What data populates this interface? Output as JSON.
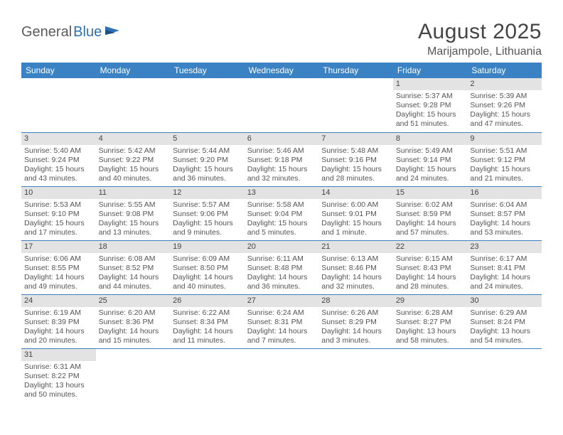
{
  "logo": {
    "text_dark": "General",
    "text_blue": "Blue"
  },
  "title": "August 2025",
  "location": "Marijampole, Lithuania",
  "colors": {
    "header_bg": "#3b82c4",
    "header_fg": "#ffffff",
    "daynum_bg": "#e3e3e3",
    "rule": "#3b82c4",
    "logo_dark": "#5a5a5a",
    "logo_blue": "#2f6fb3"
  },
  "weekdays": [
    "Sunday",
    "Monday",
    "Tuesday",
    "Wednesday",
    "Thursday",
    "Friday",
    "Saturday"
  ],
  "weeks": [
    [
      null,
      null,
      null,
      null,
      null,
      {
        "n": "1",
        "sr": "Sunrise: 5:37 AM",
        "ss": "Sunset: 9:28 PM",
        "dl1": "Daylight: 15 hours",
        "dl2": "and 51 minutes."
      },
      {
        "n": "2",
        "sr": "Sunrise: 5:39 AM",
        "ss": "Sunset: 9:26 PM",
        "dl1": "Daylight: 15 hours",
        "dl2": "and 47 minutes."
      }
    ],
    [
      {
        "n": "3",
        "sr": "Sunrise: 5:40 AM",
        "ss": "Sunset: 9:24 PM",
        "dl1": "Daylight: 15 hours",
        "dl2": "and 43 minutes."
      },
      {
        "n": "4",
        "sr": "Sunrise: 5:42 AM",
        "ss": "Sunset: 9:22 PM",
        "dl1": "Daylight: 15 hours",
        "dl2": "and 40 minutes."
      },
      {
        "n": "5",
        "sr": "Sunrise: 5:44 AM",
        "ss": "Sunset: 9:20 PM",
        "dl1": "Daylight: 15 hours",
        "dl2": "and 36 minutes."
      },
      {
        "n": "6",
        "sr": "Sunrise: 5:46 AM",
        "ss": "Sunset: 9:18 PM",
        "dl1": "Daylight: 15 hours",
        "dl2": "and 32 minutes."
      },
      {
        "n": "7",
        "sr": "Sunrise: 5:48 AM",
        "ss": "Sunset: 9:16 PM",
        "dl1": "Daylight: 15 hours",
        "dl2": "and 28 minutes."
      },
      {
        "n": "8",
        "sr": "Sunrise: 5:49 AM",
        "ss": "Sunset: 9:14 PM",
        "dl1": "Daylight: 15 hours",
        "dl2": "and 24 minutes."
      },
      {
        "n": "9",
        "sr": "Sunrise: 5:51 AM",
        "ss": "Sunset: 9:12 PM",
        "dl1": "Daylight: 15 hours",
        "dl2": "and 21 minutes."
      }
    ],
    [
      {
        "n": "10",
        "sr": "Sunrise: 5:53 AM",
        "ss": "Sunset: 9:10 PM",
        "dl1": "Daylight: 15 hours",
        "dl2": "and 17 minutes."
      },
      {
        "n": "11",
        "sr": "Sunrise: 5:55 AM",
        "ss": "Sunset: 9:08 PM",
        "dl1": "Daylight: 15 hours",
        "dl2": "and 13 minutes."
      },
      {
        "n": "12",
        "sr": "Sunrise: 5:57 AM",
        "ss": "Sunset: 9:06 PM",
        "dl1": "Daylight: 15 hours",
        "dl2": "and 9 minutes."
      },
      {
        "n": "13",
        "sr": "Sunrise: 5:58 AM",
        "ss": "Sunset: 9:04 PM",
        "dl1": "Daylight: 15 hours",
        "dl2": "and 5 minutes."
      },
      {
        "n": "14",
        "sr": "Sunrise: 6:00 AM",
        "ss": "Sunset: 9:01 PM",
        "dl1": "Daylight: 15 hours",
        "dl2": "and 1 minute."
      },
      {
        "n": "15",
        "sr": "Sunrise: 6:02 AM",
        "ss": "Sunset: 8:59 PM",
        "dl1": "Daylight: 14 hours",
        "dl2": "and 57 minutes."
      },
      {
        "n": "16",
        "sr": "Sunrise: 6:04 AM",
        "ss": "Sunset: 8:57 PM",
        "dl1": "Daylight: 14 hours",
        "dl2": "and 53 minutes."
      }
    ],
    [
      {
        "n": "17",
        "sr": "Sunrise: 6:06 AM",
        "ss": "Sunset: 8:55 PM",
        "dl1": "Daylight: 14 hours",
        "dl2": "and 49 minutes."
      },
      {
        "n": "18",
        "sr": "Sunrise: 6:08 AM",
        "ss": "Sunset: 8:52 PM",
        "dl1": "Daylight: 14 hours",
        "dl2": "and 44 minutes."
      },
      {
        "n": "19",
        "sr": "Sunrise: 6:09 AM",
        "ss": "Sunset: 8:50 PM",
        "dl1": "Daylight: 14 hours",
        "dl2": "and 40 minutes."
      },
      {
        "n": "20",
        "sr": "Sunrise: 6:11 AM",
        "ss": "Sunset: 8:48 PM",
        "dl1": "Daylight: 14 hours",
        "dl2": "and 36 minutes."
      },
      {
        "n": "21",
        "sr": "Sunrise: 6:13 AM",
        "ss": "Sunset: 8:46 PM",
        "dl1": "Daylight: 14 hours",
        "dl2": "and 32 minutes."
      },
      {
        "n": "22",
        "sr": "Sunrise: 6:15 AM",
        "ss": "Sunset: 8:43 PM",
        "dl1": "Daylight: 14 hours",
        "dl2": "and 28 minutes."
      },
      {
        "n": "23",
        "sr": "Sunrise: 6:17 AM",
        "ss": "Sunset: 8:41 PM",
        "dl1": "Daylight: 14 hours",
        "dl2": "and 24 minutes."
      }
    ],
    [
      {
        "n": "24",
        "sr": "Sunrise: 6:19 AM",
        "ss": "Sunset: 8:39 PM",
        "dl1": "Daylight: 14 hours",
        "dl2": "and 20 minutes."
      },
      {
        "n": "25",
        "sr": "Sunrise: 6:20 AM",
        "ss": "Sunset: 8:36 PM",
        "dl1": "Daylight: 14 hours",
        "dl2": "and 15 minutes."
      },
      {
        "n": "26",
        "sr": "Sunrise: 6:22 AM",
        "ss": "Sunset: 8:34 PM",
        "dl1": "Daylight: 14 hours",
        "dl2": "and 11 minutes."
      },
      {
        "n": "27",
        "sr": "Sunrise: 6:24 AM",
        "ss": "Sunset: 8:31 PM",
        "dl1": "Daylight: 14 hours",
        "dl2": "and 7 minutes."
      },
      {
        "n": "28",
        "sr": "Sunrise: 6:26 AM",
        "ss": "Sunset: 8:29 PM",
        "dl1": "Daylight: 14 hours",
        "dl2": "and 3 minutes."
      },
      {
        "n": "29",
        "sr": "Sunrise: 6:28 AM",
        "ss": "Sunset: 8:27 PM",
        "dl1": "Daylight: 13 hours",
        "dl2": "and 58 minutes."
      },
      {
        "n": "30",
        "sr": "Sunrise: 6:29 AM",
        "ss": "Sunset: 8:24 PM",
        "dl1": "Daylight: 13 hours",
        "dl2": "and 54 minutes."
      }
    ],
    [
      {
        "n": "31",
        "sr": "Sunrise: 6:31 AM",
        "ss": "Sunset: 8:22 PM",
        "dl1": "Daylight: 13 hours",
        "dl2": "and 50 minutes."
      },
      null,
      null,
      null,
      null,
      null,
      null
    ]
  ]
}
